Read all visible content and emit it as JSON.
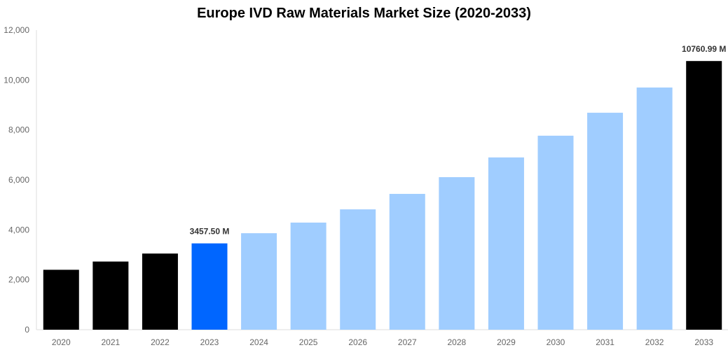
{
  "chart_data": {
    "type": "bar",
    "title": "Europe IVD Raw Materials Market Size (2020-2033)",
    "xlabel": "",
    "ylabel": "",
    "categories": [
      "2020",
      "2021",
      "2022",
      "2023",
      "2024",
      "2025",
      "2026",
      "2027",
      "2028",
      "2029",
      "2030",
      "2031",
      "2032",
      "2033"
    ],
    "values": [
      2400,
      2730,
      3050,
      3457.5,
      3865,
      4290,
      4820,
      5440,
      6110,
      6900,
      7770,
      8690,
      9700,
      10760.99
    ],
    "data_labels": {
      "3": "3457.50 M",
      "13": "10760.99 M"
    },
    "bar_colors": [
      "#000000",
      "#000000",
      "#000000",
      "#0066ff",
      "#a0cdff",
      "#a0cdff",
      "#a0cdff",
      "#a0cdff",
      "#a0cdff",
      "#a0cdff",
      "#a0cdff",
      "#a0cdff",
      "#a0cdff",
      "#000000"
    ],
    "ylim": [
      0,
      12000
    ],
    "yticks": [
      0,
      2000,
      4000,
      6000,
      8000,
      10000,
      12000
    ],
    "ytick_labels": [
      "0",
      "2,000",
      "4,000",
      "6,000",
      "8,000",
      "10,000",
      "12,000"
    ],
    "grid": false,
    "legend": "none"
  }
}
